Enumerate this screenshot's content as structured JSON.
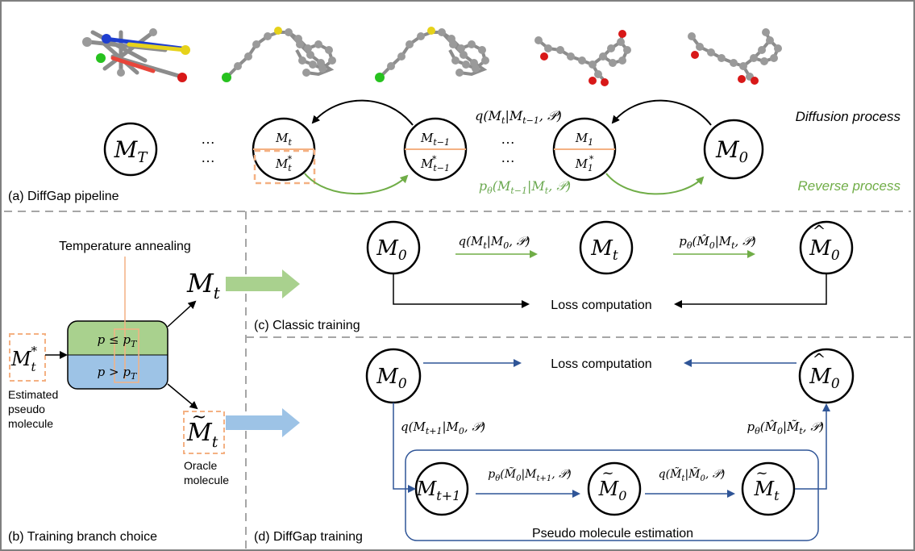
{
  "colors": {
    "green_arrow": "#70ad47",
    "blue_arrow": "#2f5597",
    "orange_dash": "#f4b183",
    "green_fill": "#a9d18e",
    "blue_fill": "#9dc3e6",
    "light_green_arrow": "#a9d18e",
    "light_blue_arrow": "#9dc3e6",
    "border": "#7f7f7f"
  },
  "icons": [
    "molecule-3d-icon-1",
    "molecule-3d-icon-2",
    "molecule-3d-icon-3",
    "molecule-3d-icon-4",
    "molecule-3d-icon-5"
  ],
  "panel_a": {
    "caption": "(a) DiffGap pipeline",
    "diffusion_label": "Diffusion process",
    "reverse_label": "Reverse process",
    "ellipsis": "…",
    "M_T": "M_T",
    "Mt_top": "M_t",
    "Mt_bottom": "M_t^*",
    "Mt1_top": "M_{t-1}",
    "Mt1_bottom": "M_{t-1}^*",
    "M1_top": "M_1",
    "M1_bottom": "M_1^*",
    "M0": "M_0",
    "forward_formula": "q(M_t|M_{t−1}, 𝒫)",
    "reverse_formula": "p_θ(M_{t−1}|M_t, 𝒫)"
  },
  "panel_b": {
    "caption": "(b) Training branch choice",
    "temperature": "Temperature annealing",
    "cond_top": "p ≤ p_T",
    "cond_bottom": "p > p_T",
    "input": "M_t^*",
    "estimated_label": [
      "Estimated",
      "pseudo",
      "molecule"
    ],
    "out_top": "M_t",
    "out_bottom": "M̃_t",
    "oracle_label": [
      "Oracle",
      "molecule"
    ]
  },
  "panel_c": {
    "caption": "(c) Classic training",
    "M0": "M_0",
    "Mt": "M_t",
    "M0hat": "M̂_0",
    "q_formula": "q(M_t|M_0, 𝒫)",
    "p_formula": "p_θ(M̂_0|M_t, 𝒫)",
    "loss": "Loss computation"
  },
  "panel_d": {
    "caption": "(d) DiffGap training",
    "loss": "Loss computation",
    "M0": "M_0",
    "M0hat": "M̂_0",
    "q_formula": "q(M_{t+1}|M_0, 𝒫)",
    "p_formula": "p_θ(M̂_0|M̃_t, 𝒫)",
    "Mt1": "M_{t+1}",
    "M0tilde": "M̃_0",
    "Mttilde": "M̃_t",
    "p_inner": "p_θ(M̃_0|M_{t+1}, 𝒫)",
    "q_inner": "q(M̃_t|M̃_0, 𝒫)",
    "box_label": "Pseudo molecule estimation"
  }
}
